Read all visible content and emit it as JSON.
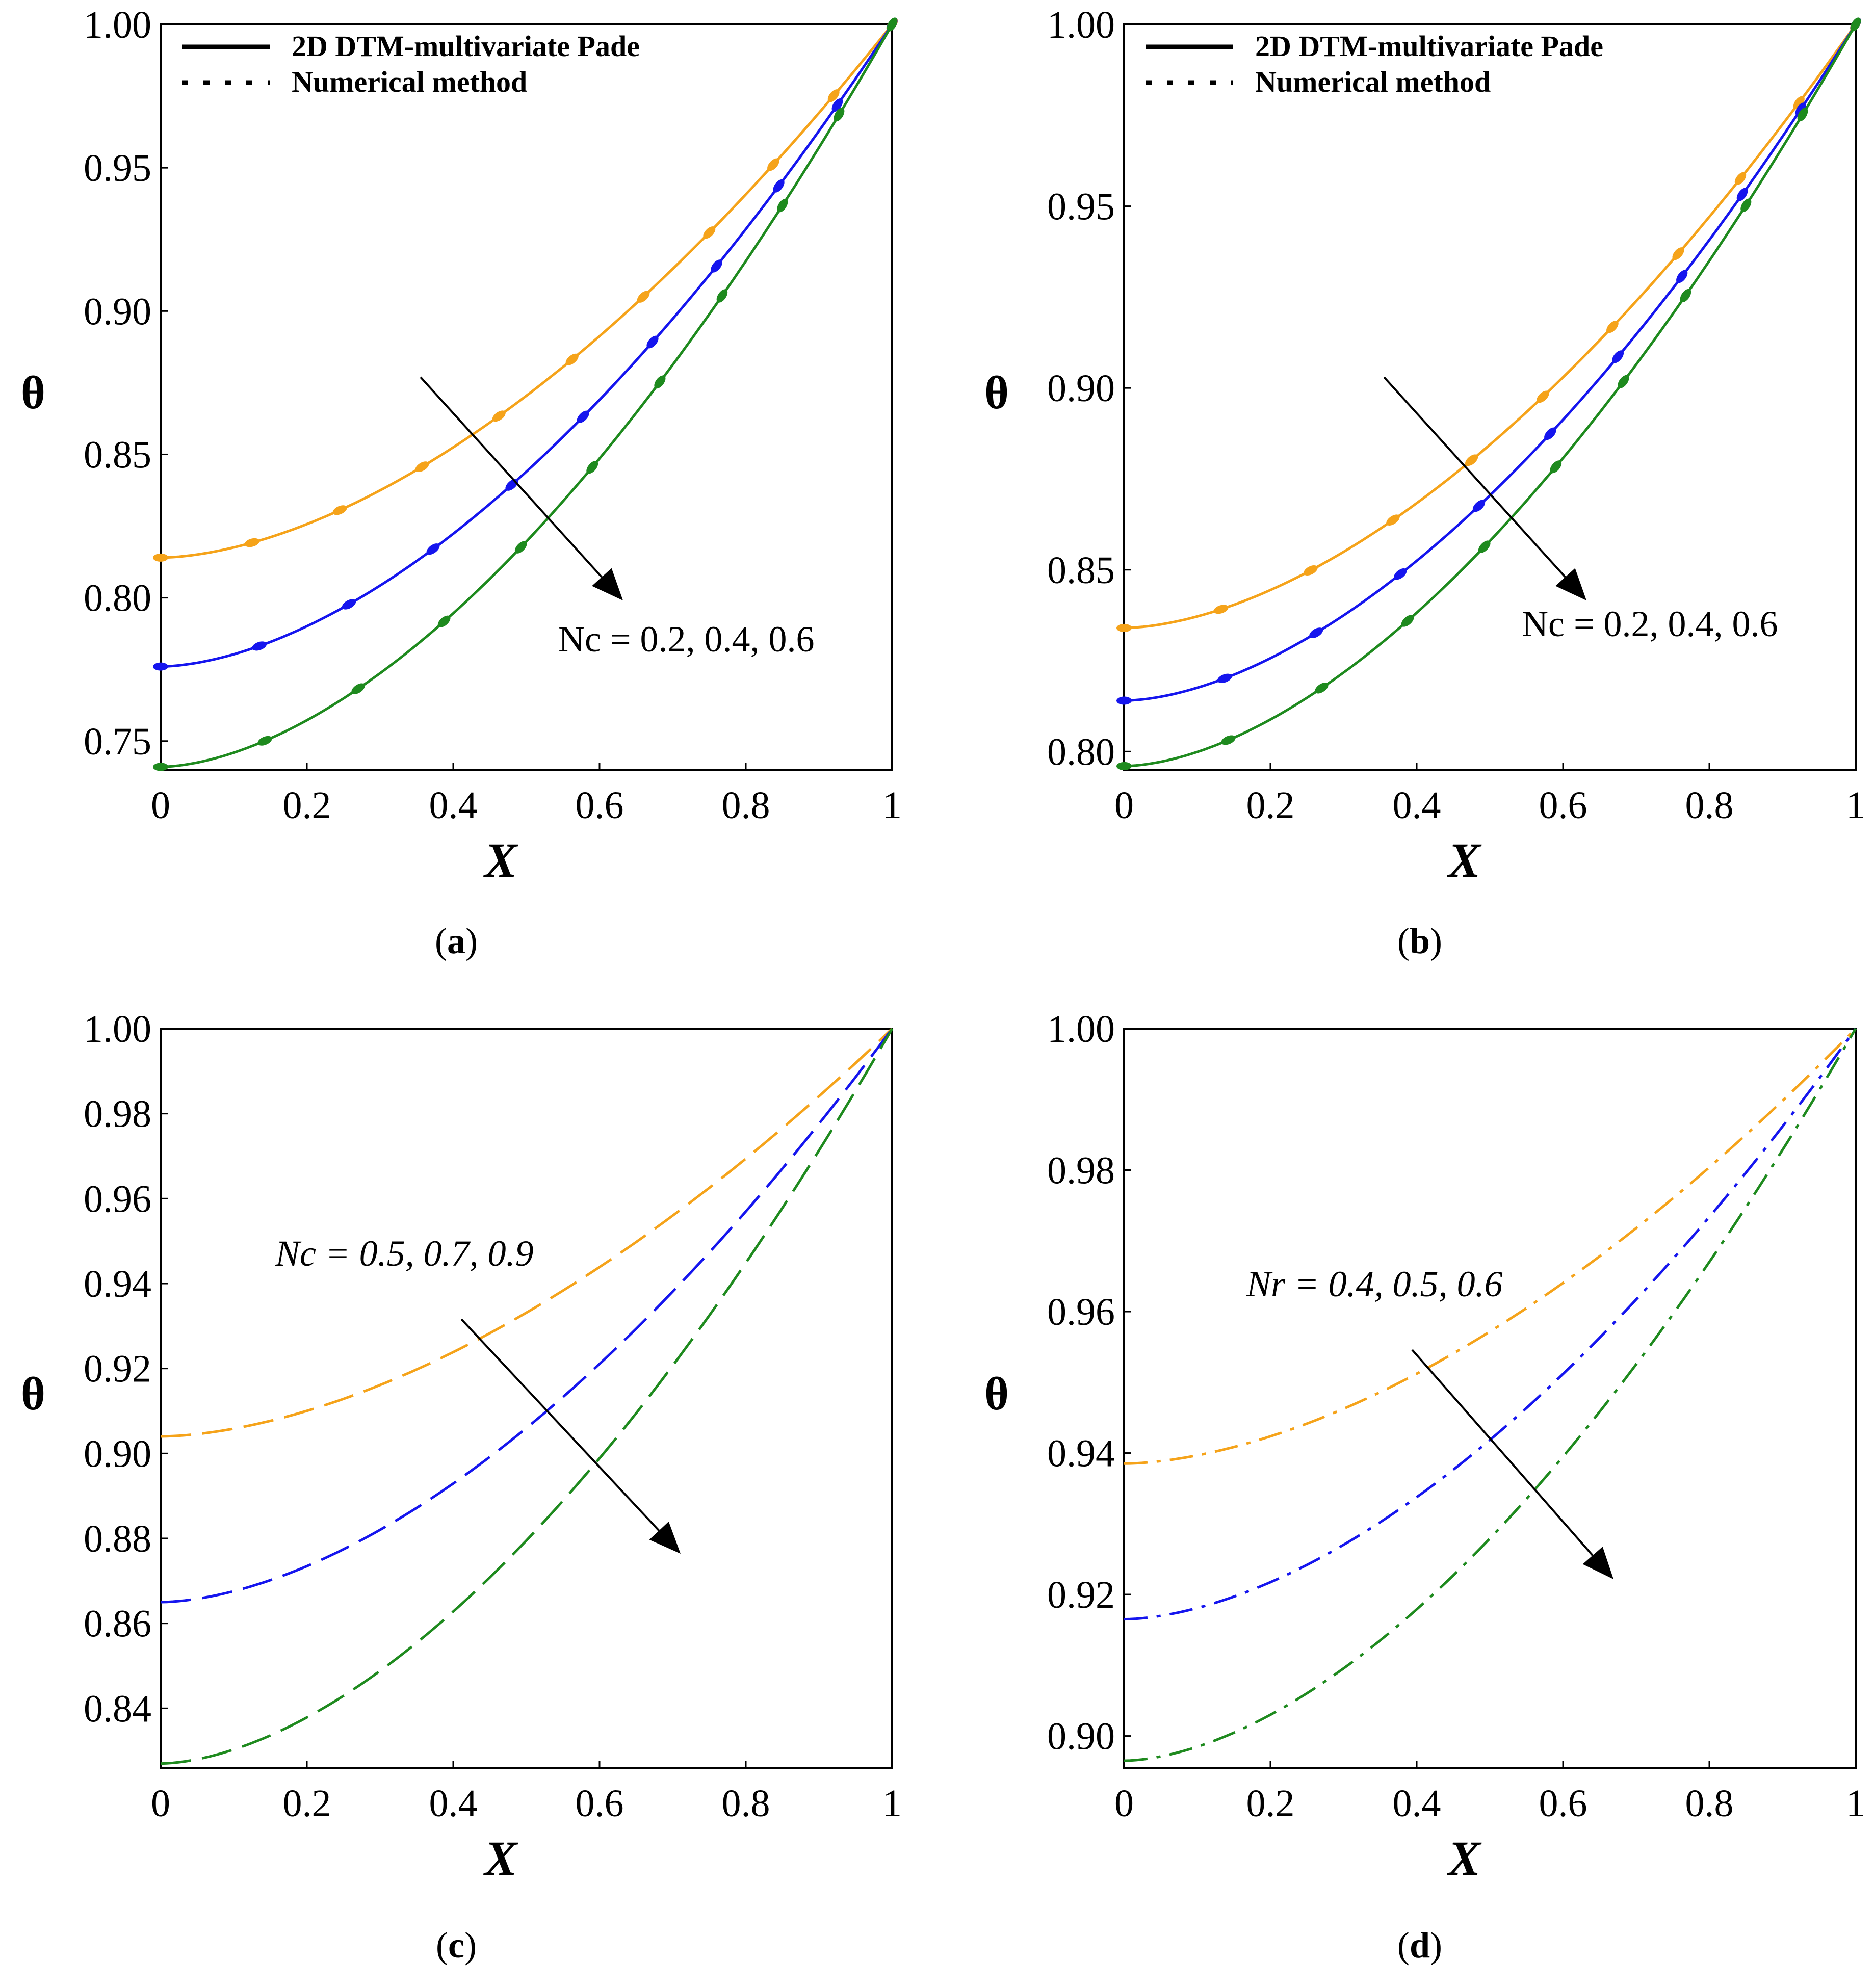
{
  "figure": {
    "captions": [
      {
        "open": "(",
        "letter": "a",
        "close": ")"
      },
      {
        "open": "(",
        "letter": "b",
        "close": ")"
      },
      {
        "open": "(",
        "letter": "c",
        "close": ")"
      },
      {
        "open": "(",
        "letter": "d",
        "close": ")"
      }
    ]
  },
  "colors": {
    "orange": "#F5A31A",
    "blue": "#1515EE",
    "green": "#1E8A1E",
    "axis": "#000000"
  },
  "chart_data": [
    {
      "type": "line",
      "panel": "a",
      "xlabel": "X",
      "ylabel": "θ",
      "xlim": [
        0,
        1
      ],
      "ylim": [
        0.74,
        1.0
      ],
      "xticks": [
        "0",
        "0.2",
        "0.4",
        "0.6",
        "0.8",
        "1"
      ],
      "yticks": [
        "0.75",
        "0.80",
        "0.85",
        "0.90",
        "0.95",
        "1.00"
      ],
      "legend": {
        "position": "top-left",
        "entries": [
          "2D DTM-multivariate Pade",
          "Numerical method"
        ]
      },
      "annotation": "Nc = 0.2, 0.4, 0.6",
      "series": [
        {
          "name": "Nc = 0.2",
          "color": "#F5A31A",
          "theta0": 0.814,
          "style": "solid",
          "markers": true
        },
        {
          "name": "Nc = 0.4",
          "color": "#1515EE",
          "theta0": 0.776,
          "style": "solid",
          "markers": true
        },
        {
          "name": "Nc = 0.6",
          "color": "#1E8A1E",
          "theta0": 0.741,
          "style": "solid",
          "markers": true
        }
      ]
    },
    {
      "type": "line",
      "panel": "b",
      "xlabel": "X",
      "ylabel": "θ",
      "xlim": [
        0,
        1
      ],
      "ylim": [
        0.795,
        1.0
      ],
      "xticks": [
        "0",
        "0.2",
        "0.4",
        "0.6",
        "0.8",
        "1"
      ],
      "yticks": [
        "0.80",
        "0.85",
        "0.90",
        "0.95",
        "1.00"
      ],
      "legend": {
        "position": "top-left",
        "entries": [
          "2D DTM-multivariate Pade",
          "Numerical method"
        ]
      },
      "annotation": "Nc = 0.2, 0.4, 0.6",
      "series": [
        {
          "name": "Nc = 0.2",
          "color": "#F5A31A",
          "theta0": 0.834,
          "style": "solid",
          "markers": true
        },
        {
          "name": "Nc = 0.4",
          "color": "#1515EE",
          "theta0": 0.814,
          "style": "solid",
          "markers": true
        },
        {
          "name": "Nc = 0.6",
          "color": "#1E8A1E",
          "theta0": 0.796,
          "style": "solid",
          "markers": true
        }
      ]
    },
    {
      "type": "line",
      "panel": "c",
      "xlabel": "X",
      "ylabel": "θ",
      "xlim": [
        0,
        1
      ],
      "ylim": [
        0.826,
        1.0
      ],
      "xticks": [
        "0",
        "0.2",
        "0.4",
        "0.6",
        "0.8",
        "1"
      ],
      "yticks": [
        "0.84",
        "0.86",
        "0.88",
        "0.90",
        "0.92",
        "0.94",
        "0.96",
        "0.98",
        "1.00"
      ],
      "annotation": "Nc = 0.5, 0.7, 0.9",
      "series": [
        {
          "name": "Nc = 0.5",
          "color": "#F5A31A",
          "theta0": 0.904,
          "style": "dashed",
          "markers": false
        },
        {
          "name": "Nc = 0.7",
          "color": "#1515EE",
          "theta0": 0.865,
          "style": "dashed",
          "markers": false
        },
        {
          "name": "Nc = 0.9",
          "color": "#1E8A1E",
          "theta0": 0.827,
          "style": "dashed",
          "markers": false
        }
      ]
    },
    {
      "type": "line",
      "panel": "d",
      "xlabel": "X",
      "ylabel": "θ",
      "xlim": [
        0,
        1
      ],
      "ylim": [
        0.8955,
        1.0
      ],
      "xticks": [
        "0",
        "0.2",
        "0.4",
        "0.6",
        "0.8",
        "1"
      ],
      "yticks": [
        "0.90",
        "0.92",
        "0.94",
        "0.96",
        "0.98",
        "1.00"
      ],
      "annotation": "Nr = 0.4, 0.5, 0.6",
      "series": [
        {
          "name": "Nr = 0.4",
          "color": "#F5A31A",
          "theta0": 0.9385,
          "style": "dashdot",
          "markers": false
        },
        {
          "name": "Nr = 0.5",
          "color": "#1515EE",
          "theta0": 0.9165,
          "style": "dashdot",
          "markers": false
        },
        {
          "name": "Nr = 0.6",
          "color": "#1E8A1E",
          "theta0": 0.8965,
          "style": "dashdot",
          "markers": false
        }
      ]
    }
  ]
}
